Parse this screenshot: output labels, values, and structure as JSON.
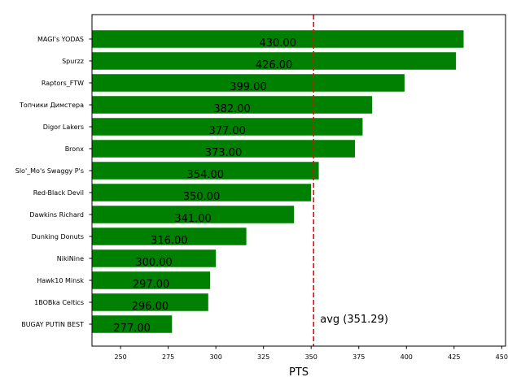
{
  "chart_data": {
    "type": "bar",
    "orientation": "horizontal",
    "categories": [
      "MAGI's YODAS",
      "Spurzz",
      "Raptors_FTW",
      "Топчики Димстера",
      "Digor Lakers",
      "Bronx",
      "Slo'_Mo's Swaggy P's",
      "Red-Black Devil",
      "Dawkins Richard",
      "Dunking Donuts",
      "NikiNine",
      "Hawk10 Minsk",
      "1BOBka Celtics",
      "BUGAY PUTIN BEST"
    ],
    "values": [
      430,
      426,
      399,
      382,
      377,
      373,
      354,
      350,
      341,
      316,
      300,
      297,
      296,
      277
    ],
    "value_labels": [
      "430.00",
      "426.00",
      "399.00",
      "382.00",
      "377.00",
      "373.00",
      "354.00",
      "350.00",
      "341.00",
      "316.00",
      "300.00",
      "297.00",
      "296.00",
      "277.00"
    ],
    "xlabel": "PTS",
    "ylabel": "",
    "xlim": [
      235,
      452
    ],
    "xticks": [
      250,
      275,
      300,
      325,
      350,
      375,
      400,
      425,
      450
    ],
    "grid": false,
    "bar_color": "#008000",
    "average": {
      "value": 351.29,
      "label": "avg (351.29)",
      "color": "#ff0000",
      "style": "dashed"
    }
  }
}
